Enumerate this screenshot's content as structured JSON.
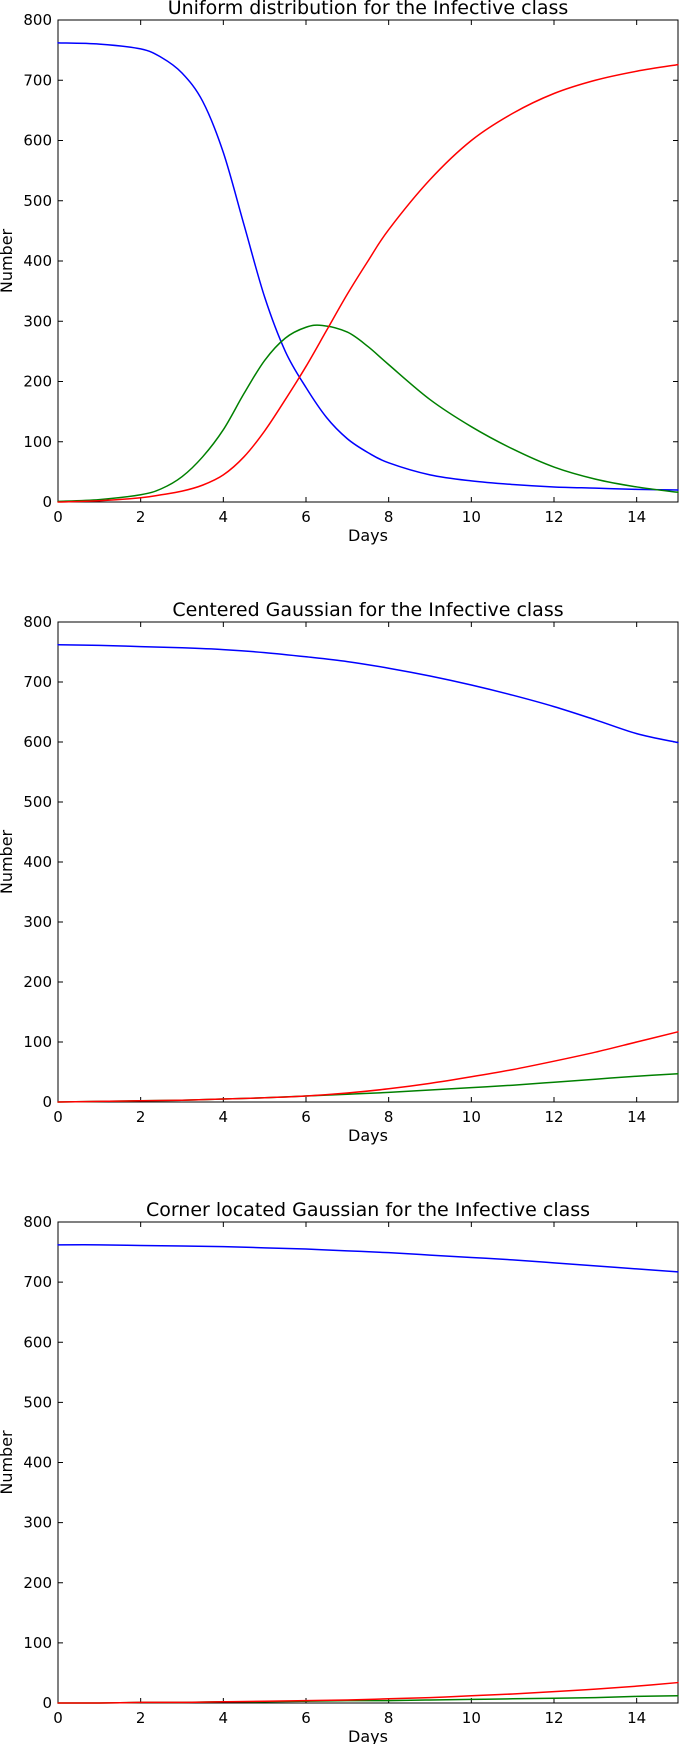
{
  "chart_data": [
    {
      "type": "line",
      "title": "Uniform distribution for the Infective class",
      "xlabel": "Days",
      "ylabel": "Number",
      "xlim": [
        0,
        15
      ],
      "ylim": [
        0,
        800
      ],
      "xticks": [
        0,
        2,
        4,
        6,
        8,
        10,
        12,
        14
      ],
      "yticks": [
        0,
        100,
        200,
        300,
        400,
        500,
        600,
        700,
        800
      ],
      "grid": false,
      "series": [
        {
          "color": "#0000ff",
          "x": [
            0,
            1,
            2,
            2.5,
            3,
            3.5,
            4,
            4.5,
            5,
            5.5,
            6,
            6.5,
            7,
            7.5,
            8,
            9,
            10,
            11,
            12,
            13,
            14,
            15
          ],
          "y": [
            762,
            760,
            752,
            738,
            712,
            665,
            580,
            460,
            340,
            250,
            190,
            140,
            105,
            82,
            65,
            45,
            35,
            29,
            25,
            23,
            21,
            20
          ]
        },
        {
          "color": "#008000",
          "x": [
            0,
            1,
            2,
            2.5,
            3,
            3.5,
            4,
            4.5,
            5,
            5.5,
            6,
            6.4,
            7,
            7.5,
            8,
            9,
            10,
            11,
            12,
            13,
            14,
            15
          ],
          "y": [
            1,
            4,
            12,
            22,
            42,
            75,
            120,
            180,
            235,
            272,
            290,
            293,
            282,
            258,
            228,
            170,
            125,
            88,
            58,
            38,
            25,
            16
          ]
        },
        {
          "color": "#ff0000",
          "x": [
            0,
            1,
            2,
            2.5,
            3,
            3.5,
            4,
            4.5,
            5,
            5.5,
            6,
            6.5,
            7,
            7.5,
            8,
            9,
            10,
            11,
            12,
            13,
            14,
            15
          ],
          "y": [
            0,
            2,
            7,
            12,
            18,
            28,
            45,
            75,
            118,
            170,
            225,
            285,
            345,
            400,
            452,
            535,
            600,
            645,
            678,
            700,
            715,
            726
          ]
        }
      ]
    },
    {
      "type": "line",
      "title": "Centered Gaussian for the Infective class",
      "xlabel": "Days",
      "ylabel": "Number",
      "xlim": [
        0,
        15
      ],
      "ylim": [
        0,
        800
      ],
      "xticks": [
        0,
        2,
        4,
        6,
        8,
        10,
        12,
        14
      ],
      "yticks": [
        0,
        100,
        200,
        300,
        400,
        500,
        600,
        700,
        800
      ],
      "grid": false,
      "series": [
        {
          "color": "#0000ff",
          "x": [
            0,
            1,
            2,
            3,
            4,
            5,
            6,
            7,
            8,
            9,
            10,
            11,
            12,
            13,
            14,
            15
          ],
          "y": [
            762,
            761,
            759,
            757,
            754,
            749,
            742,
            734,
            723,
            710,
            695,
            678,
            659,
            637,
            614,
            599
          ]
        },
        {
          "color": "#008000",
          "x": [
            0,
            1,
            2,
            3,
            4,
            5,
            6,
            7,
            8,
            9,
            10,
            11,
            12,
            13,
            14,
            15
          ],
          "y": [
            0,
            1,
            2,
            3,
            5,
            7,
            10,
            13,
            16,
            20,
            24,
            28,
            33,
            38,
            43,
            47
          ]
        },
        {
          "color": "#ff0000",
          "x": [
            0,
            1,
            2,
            3,
            4,
            5,
            6,
            7,
            8,
            9,
            10,
            11,
            12,
            13,
            14,
            15
          ],
          "y": [
            0,
            1,
            2,
            3,
            5,
            7,
            10,
            15,
            22,
            31,
            42,
            54,
            68,
            83,
            100,
            117
          ]
        }
      ]
    },
    {
      "type": "line",
      "title": "Corner located Gaussian for the Infective class",
      "xlabel": "Days",
      "ylabel": "Number",
      "xlim": [
        0,
        15
      ],
      "ylim": [
        0,
        800
      ],
      "xticks": [
        0,
        2,
        4,
        6,
        8,
        10,
        12,
        14
      ],
      "yticks": [
        0,
        100,
        200,
        300,
        400,
        500,
        600,
        700,
        800
      ],
      "grid": false,
      "series": [
        {
          "color": "#0000ff",
          "x": [
            0,
            1,
            2,
            3,
            4,
            5,
            6,
            7,
            8,
            9,
            10,
            11,
            12,
            13,
            14,
            15
          ],
          "y": [
            762,
            762,
            761,
            760,
            759,
            757,
            755,
            752,
            749,
            745,
            741,
            737,
            732,
            727,
            722,
            717
          ]
        },
        {
          "color": "#008000",
          "x": [
            0,
            1,
            2,
            3,
            4,
            5,
            6,
            7,
            8,
            9,
            10,
            11,
            12,
            13,
            14,
            15
          ],
          "y": [
            0,
            0,
            1,
            1,
            2,
            2,
            3,
            4,
            4,
            5,
            6,
            7,
            8,
            9,
            11,
            12
          ]
        },
        {
          "color": "#ff0000",
          "x": [
            0,
            1,
            2,
            3,
            4,
            5,
            6,
            7,
            8,
            9,
            10,
            11,
            12,
            13,
            14,
            15
          ],
          "y": [
            0,
            0,
            1,
            1,
            2,
            3,
            4,
            5,
            7,
            9,
            12,
            15,
            19,
            23,
            28,
            34
          ]
        }
      ]
    }
  ]
}
